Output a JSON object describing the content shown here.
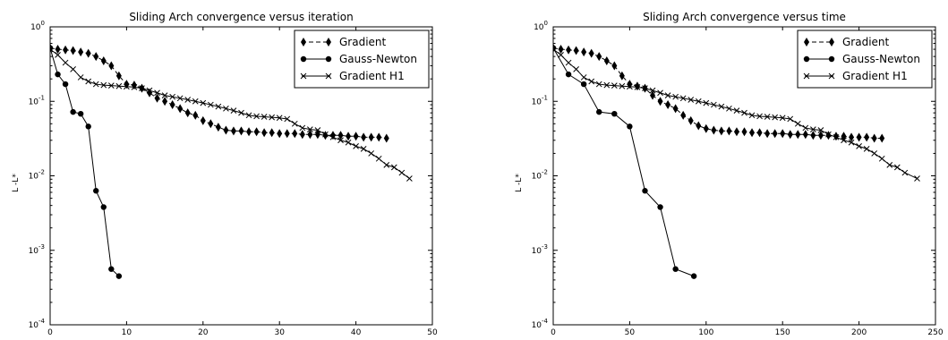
{
  "chart_data": [
    {
      "type": "line",
      "title": "Sliding Arch convergence versus iteration",
      "xlabel": "",
      "ylabel": "L -L*",
      "xlim": [
        0,
        50
      ],
      "ylim": [
        0.0001,
        1
      ],
      "yscale": "log",
      "xticks": [
        "0",
        "10",
        "20",
        "30",
        "40",
        "50"
      ],
      "yticks": [
        {
          "base": "10",
          "exp": "-4"
        },
        {
          "base": "10",
          "exp": "-3"
        },
        {
          "base": "10",
          "exp": "-2"
        },
        {
          "base": "10",
          "exp": "-1"
        },
        {
          "base": "10",
          "exp": "0"
        }
      ],
      "grid": false,
      "legend": "top-right",
      "series": [
        {
          "name": "Gradient",
          "marker": "diamond",
          "linestyle": "dashed",
          "x": [
            0,
            1,
            2,
            3,
            4,
            5,
            6,
            7,
            8,
            9,
            10,
            11,
            12,
            13,
            14,
            15,
            16,
            17,
            18,
            19,
            20,
            21,
            22,
            23,
            24,
            25,
            26,
            27,
            28,
            29,
            30,
            31,
            32,
            33,
            34,
            35,
            36,
            37,
            38,
            39,
            40,
            41,
            42,
            43,
            44
          ],
          "y": [
            0.52,
            0.5,
            0.49,
            0.48,
            0.46,
            0.44,
            0.4,
            0.35,
            0.3,
            0.22,
            0.17,
            0.165,
            0.15,
            0.13,
            0.11,
            0.1,
            0.09,
            0.08,
            0.07,
            0.065,
            0.055,
            0.05,
            0.045,
            0.041,
            0.04,
            0.04,
            0.039,
            0.039,
            0.038,
            0.038,
            0.037,
            0.037,
            0.037,
            0.036,
            0.036,
            0.036,
            0.035,
            0.035,
            0.035,
            0.034,
            0.034,
            0.033,
            0.033,
            0.033,
            0.032
          ]
        },
        {
          "name": "Gauss-Newton",
          "marker": "circle",
          "linestyle": "solid",
          "x": [
            0,
            1,
            2,
            3,
            4,
            5,
            6,
            7,
            8,
            9
          ],
          "y": [
            0.52,
            0.23,
            0.17,
            0.072,
            0.068,
            0.046,
            0.0063,
            0.0038,
            0.00056,
            0.00045
          ]
        },
        {
          "name": "Gradient H1",
          "marker": "x",
          "linestyle": "solid",
          "x": [
            0,
            1,
            2,
            3,
            4,
            5,
            6,
            7,
            8,
            9,
            10,
            11,
            12,
            13,
            14,
            15,
            16,
            17,
            18,
            19,
            20,
            21,
            22,
            23,
            24,
            25,
            26,
            27,
            28,
            29,
            30,
            31,
            32,
            33,
            34,
            35,
            36,
            37,
            38,
            39,
            40,
            41,
            42,
            43,
            44,
            45,
            46,
            47
          ],
          "y": [
            0.5,
            0.42,
            0.33,
            0.27,
            0.21,
            0.185,
            0.17,
            0.165,
            0.163,
            0.16,
            0.158,
            0.155,
            0.15,
            0.14,
            0.13,
            0.12,
            0.115,
            0.11,
            0.105,
            0.1,
            0.095,
            0.09,
            0.085,
            0.08,
            0.075,
            0.07,
            0.065,
            0.063,
            0.062,
            0.061,
            0.06,
            0.058,
            0.05,
            0.044,
            0.042,
            0.041,
            0.036,
            0.033,
            0.03,
            0.028,
            0.025,
            0.023,
            0.02,
            0.017,
            0.014,
            0.013,
            0.011,
            0.0092
          ]
        }
      ]
    },
    {
      "type": "line",
      "title": "Sliding Arch convergence versus time",
      "xlabel": "",
      "ylabel": "L -L*",
      "xlim": [
        0,
        250
      ],
      "ylim": [
        0.0001,
        1
      ],
      "yscale": "log",
      "xticks": [
        "0",
        "50",
        "100",
        "150",
        "200",
        "250"
      ],
      "yticks": [
        {
          "base": "10",
          "exp": "-4"
        },
        {
          "base": "10",
          "exp": "-3"
        },
        {
          "base": "10",
          "exp": "-2"
        },
        {
          "base": "10",
          "exp": "-1"
        },
        {
          "base": "10",
          "exp": "0"
        }
      ],
      "grid": false,
      "legend": "top-right",
      "series": [
        {
          "name": "Gradient",
          "marker": "diamond",
          "linestyle": "dashed",
          "x": [
            0,
            5,
            10,
            15,
            20,
            25,
            30,
            35,
            40,
            45,
            50,
            55,
            60,
            65,
            70,
            75,
            80,
            85,
            90,
            95,
            100,
            105,
            110,
            115,
            120,
            125,
            130,
            135,
            140,
            145,
            150,
            155,
            160,
            165,
            170,
            175,
            180,
            185,
            190,
            195,
            200,
            205,
            210,
            215
          ],
          "y": [
            0.52,
            0.5,
            0.49,
            0.48,
            0.46,
            0.44,
            0.4,
            0.35,
            0.3,
            0.22,
            0.17,
            0.16,
            0.15,
            0.12,
            0.1,
            0.09,
            0.08,
            0.065,
            0.055,
            0.047,
            0.043,
            0.041,
            0.04,
            0.04,
            0.039,
            0.039,
            0.038,
            0.038,
            0.037,
            0.037,
            0.037,
            0.036,
            0.036,
            0.036,
            0.035,
            0.035,
            0.035,
            0.034,
            0.034,
            0.033,
            0.033,
            0.033,
            0.032,
            0.032
          ]
        },
        {
          "name": "Gauss-Newton",
          "marker": "circle",
          "linestyle": "solid",
          "x": [
            0,
            10,
            20,
            30,
            40,
            50,
            60,
            70,
            80,
            92
          ],
          "y": [
            0.52,
            0.23,
            0.17,
            0.072,
            0.068,
            0.046,
            0.0063,
            0.0038,
            0.00056,
            0.00045
          ]
        },
        {
          "name": "Gradient H1",
          "marker": "x",
          "linestyle": "solid",
          "x": [
            0,
            5,
            10,
            15,
            20,
            25,
            30,
            35,
            40,
            45,
            50,
            55,
            60,
            65,
            70,
            75,
            80,
            85,
            90,
            95,
            100,
            105,
            110,
            115,
            120,
            125,
            130,
            135,
            140,
            145,
            150,
            155,
            160,
            165,
            170,
            175,
            180,
            185,
            190,
            195,
            200,
            205,
            210,
            215,
            220,
            225,
            230,
            238
          ],
          "y": [
            0.5,
            0.42,
            0.33,
            0.27,
            0.21,
            0.185,
            0.17,
            0.165,
            0.163,
            0.16,
            0.158,
            0.155,
            0.15,
            0.14,
            0.13,
            0.12,
            0.115,
            0.11,
            0.105,
            0.1,
            0.095,
            0.09,
            0.085,
            0.08,
            0.075,
            0.07,
            0.065,
            0.063,
            0.062,
            0.061,
            0.06,
            0.058,
            0.05,
            0.044,
            0.042,
            0.041,
            0.036,
            0.033,
            0.03,
            0.028,
            0.025,
            0.023,
            0.02,
            0.017,
            0.014,
            0.013,
            0.011,
            0.0092
          ]
        }
      ]
    }
  ]
}
